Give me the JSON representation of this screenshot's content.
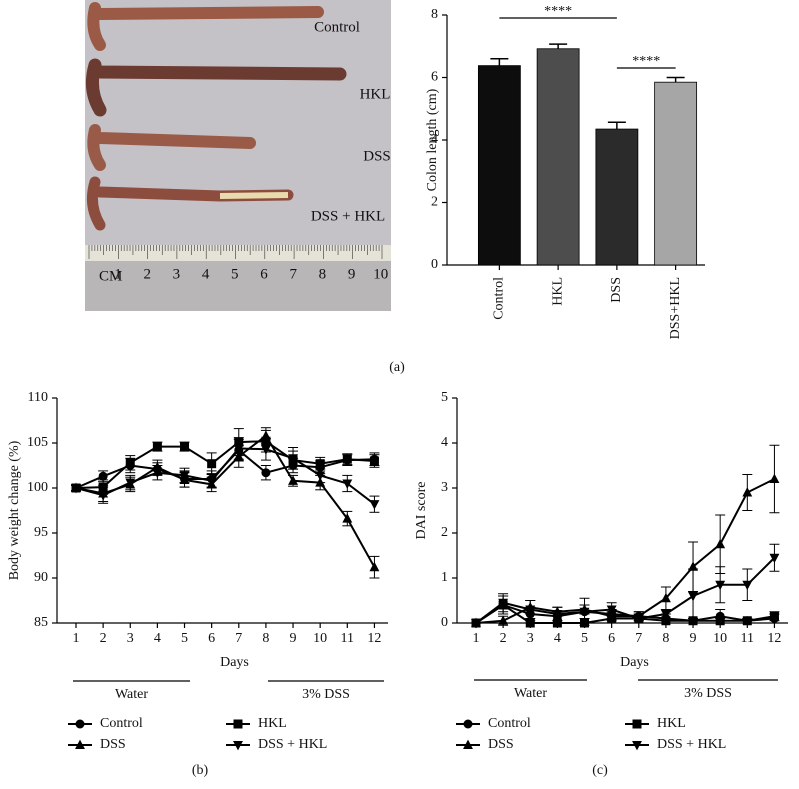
{
  "photo": {
    "labels": [
      "Control",
      "HKL",
      "DSS",
      "DSS + HKL"
    ],
    "unit": "CM",
    "ruler": [
      "1",
      "2",
      "3",
      "4",
      "5",
      "6",
      "7",
      "8",
      "9",
      "10"
    ]
  },
  "chart_data": [
    {
      "type": "bar",
      "panel_label": "(a)",
      "ylabel": "Colon length (cm)",
      "categories": [
        "Control",
        "HKL",
        "DSS",
        "DSS+HKL"
      ],
      "values": [
        6.38,
        6.92,
        4.35,
        5.85
      ],
      "errors": [
        0.22,
        0.15,
        0.22,
        0.15
      ],
      "colors": [
        "#0d0d0d",
        "#4d4d4d",
        "#2b2b2b",
        "#a6a6a6"
      ],
      "ylim": [
        0,
        8
      ],
      "yticks": [
        0,
        2,
        4,
        6,
        8
      ],
      "annotations": [
        "****",
        "****"
      ]
    },
    {
      "type": "line",
      "panel_label": "(b)",
      "xlabel": "Days",
      "ylabel": "Body weight change (%)",
      "x": [
        1,
        2,
        3,
        4,
        5,
        6,
        7,
        8,
        9,
        10,
        11,
        12
      ],
      "xlim": [
        0.3,
        12.5
      ],
      "xticks": [
        1,
        2,
        3,
        4,
        5,
        6,
        7,
        8,
        9,
        10,
        11,
        12
      ],
      "ylim": [
        85,
        110
      ],
      "yticks": [
        85,
        90,
        95,
        100,
        105,
        110
      ],
      "annotations": [
        "Water",
        "3% DSS"
      ],
      "series": [
        {
          "name": "Control",
          "color": "#000000",
          "marker": "circle",
          "values": [
            100,
            101.3,
            102.5,
            102.1,
            101,
            101,
            104.2,
            101.7,
            102.5,
            102.3,
            103.1,
            103.2
          ],
          "errors": [
            0.3,
            0.6,
            0.8,
            0.7,
            0.9,
            0.9,
            1.2,
            0.8,
            0.8,
            0.7,
            0.6,
            0.7
          ]
        },
        {
          "name": "HKL",
          "color": "#000000",
          "marker": "square",
          "values": [
            100,
            100.1,
            102.8,
            104.6,
            104.6,
            102.7,
            105.1,
            105.2,
            103.1,
            102.7,
            103.2,
            103
          ],
          "errors": [
            0.3,
            0.8,
            0.8,
            0.5,
            0.5,
            1.2,
            1.5,
            1.2,
            1.0,
            0.7,
            0.6,
            0.7
          ]
        },
        {
          "name": "DSS",
          "color": "#000000",
          "marker": "triangle-up",
          "values": [
            100,
            99.4,
            100.4,
            102.3,
            100.9,
            100.4,
            103.5,
            105.8,
            100.8,
            100.6,
            96.6,
            91.2
          ],
          "errors": [
            0.3,
            0.9,
            0.8,
            0.8,
            0.8,
            0.8,
            1.2,
            0.9,
            0.6,
            0.8,
            0.8,
            1.2
          ]
        },
        {
          "name": "DSS + HKL",
          "color": "#000000",
          "marker": "triangle-down",
          "values": [
            100,
            99.2,
            100.6,
            101.7,
            101.4,
            100.8,
            104.4,
            104.3,
            103.3,
            101.4,
            100.5,
            98.2
          ],
          "errors": [
            0.3,
            0.9,
            0.8,
            0.8,
            0.8,
            0.8,
            1.2,
            1.2,
            1.2,
            0.8,
            0.9,
            0.9
          ]
        }
      ]
    },
    {
      "type": "line",
      "panel_label": "(c)",
      "xlabel": "Days",
      "ylabel": "DAI score",
      "x": [
        1,
        2,
        3,
        4,
        5,
        6,
        7,
        8,
        9,
        10,
        11,
        12
      ],
      "xlim": [
        0.3,
        12.5
      ],
      "xticks": [
        1,
        2,
        3,
        4,
        5,
        6,
        7,
        8,
        9,
        10,
        11,
        12
      ],
      "ylim": [
        0,
        5
      ],
      "yticks": [
        0,
        1,
        2,
        3,
        4,
        5
      ],
      "annotations": [
        "Water",
        "3% DSS"
      ],
      "series": [
        {
          "name": "Control",
          "color": "#000000",
          "marker": "circle",
          "values": [
            0,
            0.4,
            0.2,
            0.15,
            0.25,
            0.2,
            0.15,
            0.1,
            0.05,
            0.15,
            0.05,
            0.1
          ],
          "errors": [
            0,
            0.2,
            0.15,
            0.1,
            0.15,
            0.1,
            0.1,
            0.1,
            0.05,
            0.15,
            0.05,
            0.1
          ]
        },
        {
          "name": "HKL",
          "color": "#000000",
          "marker": "square",
          "values": [
            0,
            0.4,
            0,
            0,
            0,
            0.1,
            0.1,
            0.05,
            0.05,
            0.05,
            0.05,
            0.15
          ],
          "errors": [
            0,
            0.2,
            0,
            0,
            0,
            0.1,
            0.1,
            0.05,
            0.05,
            0.05,
            0.05,
            0.1
          ]
        },
        {
          "name": "DSS",
          "color": "#000000",
          "marker": "triangle-up",
          "values": [
            0,
            0.05,
            0.35,
            0.25,
            0.3,
            0.15,
            0.15,
            0.55,
            1.25,
            1.75,
            2.9,
            3.2
          ],
          "errors": [
            0,
            0.1,
            0.15,
            0.1,
            0.1,
            0.1,
            0.1,
            0.25,
            0.55,
            0.65,
            0.4,
            0.75
          ]
        },
        {
          "name": "DSS + HKL",
          "color": "#000000",
          "marker": "triangle-down",
          "values": [
            0,
            0.45,
            0.3,
            0.2,
            0.25,
            0.3,
            0.1,
            0.2,
            0.6,
            0.85,
            0.85,
            1.45
          ],
          "errors": [
            0,
            0.2,
            0.2,
            0.15,
            0.3,
            0.15,
            0.1,
            0.1,
            0.6,
            0.4,
            0.35,
            0.3
          ]
        }
      ]
    }
  ]
}
